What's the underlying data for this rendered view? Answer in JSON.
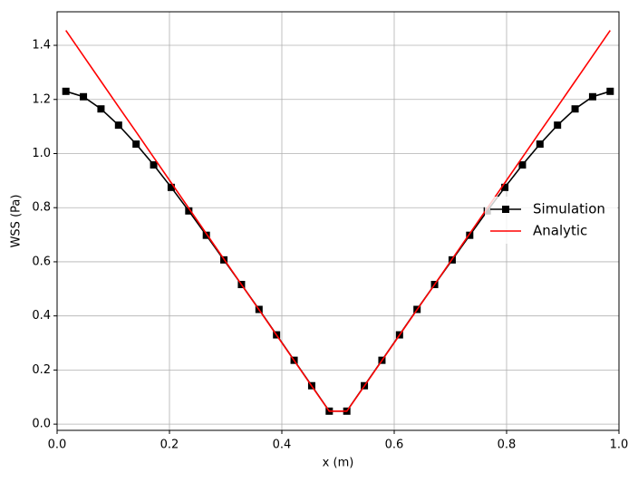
{
  "chart_data": {
    "type": "line",
    "xlabel": "x (m)",
    "ylabel": "WSS (Pa)",
    "x": [
      0.015625,
      0.046875,
      0.078125,
      0.109375,
      0.140625,
      0.171875,
      0.203125,
      0.234375,
      0.265625,
      0.296875,
      0.328125,
      0.359375,
      0.390625,
      0.421875,
      0.453125,
      0.484375,
      0.515625,
      0.546875,
      0.578125,
      0.609375,
      0.640625,
      0.671875,
      0.703125,
      0.734375,
      0.765625,
      0.796875,
      0.828125,
      0.859375,
      0.890625,
      0.921875,
      0.953125,
      0.984375
    ],
    "series": [
      {
        "name": "Simulation",
        "color": "#000000",
        "marker": "square",
        "values": [
          1.23,
          1.21,
          1.165,
          1.105,
          1.035,
          0.958,
          0.875,
          0.788,
          0.698,
          0.607,
          0.516,
          0.424,
          0.33,
          0.236,
          0.142,
          0.048,
          0.048,
          0.142,
          0.236,
          0.33,
          0.424,
          0.516,
          0.607,
          0.698,
          0.788,
          0.875,
          0.958,
          1.035,
          1.105,
          1.165,
          1.21,
          1.23
        ]
      },
      {
        "name": "Analytic",
        "color": "#ff0000",
        "values": [
          1.455,
          1.361,
          1.267,
          1.173,
          1.08,
          0.986,
          0.892,
          0.798,
          0.704,
          0.61,
          0.516,
          0.423,
          0.329,
          0.235,
          0.141,
          0.048,
          0.048,
          0.141,
          0.235,
          0.329,
          0.423,
          0.516,
          0.61,
          0.704,
          0.798,
          0.892,
          0.986,
          1.08,
          1.173,
          1.267,
          1.361,
          1.455
        ]
      }
    ],
    "xlim": [
      0,
      1
    ],
    "ylim": [
      -0.023,
      1.524
    ],
    "xticks": [
      {
        "value": 0,
        "label": "0.0"
      },
      0.2,
      0.4,
      0.6,
      0.8,
      {
        "value": 1,
        "label": "1.0"
      }
    ],
    "yticks": [
      {
        "value": 0,
        "label": "0.0"
      },
      0.2,
      0.4,
      0.6,
      0.8,
      {
        "value": 1,
        "label": "1.0"
      },
      1.2,
      1.4
    ],
    "grid": true,
    "legend": "right"
  }
}
